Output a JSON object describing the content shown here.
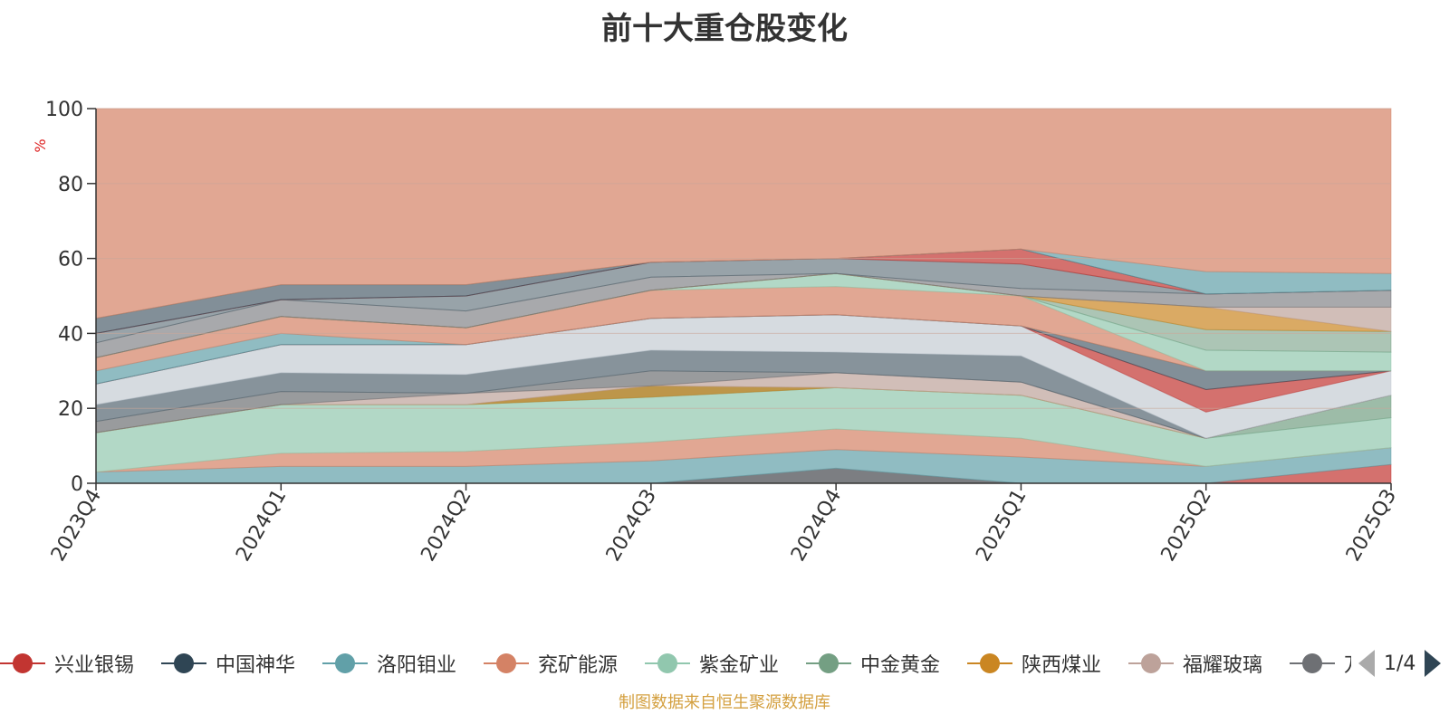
{
  "title": "前十大重仓股变化",
  "source_note": "制图数据来自恒生聚源数据库",
  "legend_pager": {
    "text": "1/4"
  },
  "legend": [
    {
      "name": "兴业银锡",
      "color": "#c23531"
    },
    {
      "name": "中国神华",
      "color": "#2f4554"
    },
    {
      "name": "洛阳钼业",
      "color": "#61a0a8"
    },
    {
      "name": "兖矿能源",
      "color": "#d48265"
    },
    {
      "name": "紫金矿业",
      "color": "#91c7ae"
    },
    {
      "name": "中金黄金",
      "color": "#749f83"
    },
    {
      "name": "陕西煤业",
      "color": "#ca8622"
    },
    {
      "name": "福耀玻璃",
      "color": "#bda29a"
    },
    {
      "name": "万华化学",
      "color": "#6e7074"
    }
  ],
  "chart_data": {
    "type": "area",
    "title": "前十大重仓股变化",
    "ylabel": "%",
    "xlabel": "",
    "ylim": [
      0,
      100
    ],
    "yticks": [
      0,
      20,
      40,
      60,
      80,
      100
    ],
    "grid": true,
    "categories": [
      "2023Q4",
      "2024Q1",
      "2024Q2",
      "2024Q3",
      "2024Q4",
      "2025Q1",
      "2025Q2",
      "2025Q3"
    ],
    "bands": [
      {
        "lower": [
          0,
          0,
          0,
          0,
          0,
          0,
          0,
          0
        ],
        "upper": [
          0,
          0,
          0,
          0,
          4,
          0,
          0,
          0
        ],
        "color": "#6e7074",
        "opacity": 0.9
      },
      {
        "lower": [
          0,
          0,
          0,
          0,
          0,
          0,
          0,
          0
        ],
        "upper": [
          0,
          0,
          0,
          0,
          0,
          0,
          0,
          5
        ],
        "color": "#c23531",
        "opacity": 0.7
      },
      {
        "lower": [
          0,
          0,
          0,
          0,
          4,
          0,
          0,
          5
        ],
        "upper": [
          3,
          4.5,
          4.5,
          6,
          9,
          7,
          4.5,
          9.5
        ],
        "color": "#61a0a8",
        "opacity": 0.7
      },
      {
        "lower": [
          3,
          4.5,
          4.5,
          6,
          9,
          7,
          4.5,
          9.5
        ],
        "upper": [
          3,
          8,
          8.5,
          11,
          14.5,
          12,
          4.5,
          9.5
        ],
        "color": "#d48265",
        "opacity": 0.7
      },
      {
        "lower": [
          3,
          8,
          8.5,
          11,
          14.5,
          12,
          4.5,
          9.5
        ],
        "upper": [
          13.5,
          21,
          21,
          23,
          25.5,
          23.5,
          12,
          17.5
        ],
        "color": "#91c7ae",
        "opacity": 0.7
      },
      {
        "lower": [
          13.5,
          21,
          21,
          23,
          25.5,
          23.5,
          12,
          17.5
        ],
        "upper": [
          13.5,
          21,
          21,
          26,
          25.5,
          23.5,
          12,
          23.5
        ],
        "color": "#749f83",
        "opacity": 0.7
      },
      {
        "lower": [
          13.5,
          21,
          21,
          23,
          25.5,
          23.5,
          12,
          23.5
        ],
        "upper": [
          13.5,
          21,
          21,
          26,
          25.5,
          23.5,
          12,
          23.5
        ],
        "color": "#ca8622",
        "opacity": 0.7
      },
      {
        "lower": [
          13.5,
          21,
          21,
          26,
          25.5,
          23.5,
          12,
          23.5
        ],
        "upper": [
          13.5,
          21,
          24,
          26,
          29.5,
          27,
          12,
          23.5
        ],
        "color": "#bda29a",
        "opacity": 0.7
      },
      {
        "lower": [
          13.5,
          21,
          24,
          26,
          29.5,
          27,
          12,
          23.5
        ],
        "upper": [
          16.5,
          24.5,
          24,
          30,
          29.5,
          27,
          12,
          23.5
        ],
        "color": "#6e7074",
        "opacity": 0.7
      },
      {
        "lower": [
          16.5,
          24.5,
          24,
          30,
          29.5,
          27,
          12,
          23.5
        ],
        "upper": [
          21,
          29.5,
          29,
          35.5,
          35,
          34,
          12,
          23.5
        ],
        "color": "#546570",
        "opacity": 0.7
      },
      {
        "lower": [
          21,
          29.5,
          29,
          35.5,
          35,
          34,
          12,
          23.5
        ],
        "upper": [
          26.5,
          37,
          37,
          44,
          45,
          42,
          19,
          30
        ],
        "color": "#c4ccd3",
        "opacity": 0.7
      },
      {
        "lower": [
          26.5,
          37,
          37,
          44,
          45,
          42,
          19,
          30
        ],
        "upper": [
          26.5,
          37,
          37,
          44,
          45,
          42,
          25,
          30
        ],
        "color": "#c23531",
        "opacity": 0.7
      },
      {
        "lower": [
          26.5,
          37,
          37,
          44,
          45,
          42,
          25,
          30
        ],
        "upper": [
          26.5,
          37,
          37,
          44,
          45,
          42,
          30,
          30
        ],
        "color": "#2f4554",
        "opacity": 0.6
      },
      {
        "lower": [
          26.5,
          37,
          37,
          44,
          45,
          42,
          30,
          30
        ],
        "upper": [
          30,
          40,
          37,
          44,
          45,
          42,
          30,
          30
        ],
        "color": "#61a0a8",
        "opacity": 0.7
      },
      {
        "lower": [
          30,
          40,
          37,
          44,
          45,
          42,
          30,
          30
        ],
        "upper": [
          33.5,
          44.5,
          41.5,
          51.5,
          52.5,
          50,
          30,
          30
        ],
        "color": "#d48265",
        "opacity": 0.7
      },
      {
        "lower": [
          33.5,
          44.5,
          41.5,
          51.5,
          52.5,
          50,
          30,
          30
        ],
        "upper": [
          33.5,
          44.5,
          41.5,
          51.5,
          56,
          50,
          35.5,
          35
        ],
        "color": "#91c7ae",
        "opacity": 0.7
      },
      {
        "lower": [
          33.5,
          44.5,
          41.5,
          51.5,
          56,
          50,
          35.5,
          35
        ],
        "upper": [
          33.5,
          44.5,
          41.5,
          51.5,
          56,
          50,
          41,
          40.5
        ],
        "color": "#749f83",
        "opacity": 0.6
      },
      {
        "lower": [
          33.5,
          44.5,
          41.5,
          51.5,
          56,
          50,
          41,
          40.5
        ],
        "upper": [
          33.5,
          44.5,
          41.5,
          51.5,
          56,
          50,
          47,
          40.5
        ],
        "color": "#ca8622",
        "opacity": 0.7
      },
      {
        "lower": [
          33.5,
          44.5,
          41.5,
          51.5,
          56,
          50,
          47,
          40.5
        ],
        "upper": [
          33.5,
          44.5,
          41.5,
          51.5,
          56,
          50,
          47,
          47
        ],
        "color": "#bda29a",
        "opacity": 0.7
      },
      {
        "lower": [
          33.5,
          44.5,
          41.5,
          51.5,
          56,
          50,
          47,
          47
        ],
        "upper": [
          37.5,
          49,
          46,
          55,
          56,
          52,
          50.5,
          51.5
        ],
        "color": "#6e7074",
        "opacity": 0.6
      },
      {
        "lower": [
          37.5,
          49,
          46,
          55,
          56,
          52,
          50.5,
          51.5
        ],
        "upper": [
          40,
          49,
          50,
          59,
          60,
          58.5,
          50.5,
          51.5
        ],
        "color": "#546570",
        "opacity": 0.6
      },
      {
        "lower": [
          40,
          49,
          50,
          59,
          60,
          58.5,
          50.5,
          51.5
        ],
        "upper": [
          40,
          49,
          50,
          59,
          60,
          62.5,
          50.5,
          51.5
        ],
        "color": "#c23531",
        "opacity": 0.7
      },
      {
        "lower": [
          40,
          49,
          50,
          59,
          60,
          62.5,
          50.5,
          51.5
        ],
        "upper": [
          44,
          53,
          53,
          59,
          60,
          62.5,
          50.5,
          51.5
        ],
        "color": "#2f4554",
        "opacity": 0.6
      },
      {
        "lower": [
          44,
          53,
          53,
          59,
          60,
          62.5,
          50.5,
          51.5
        ],
        "upper": [
          44,
          53,
          53,
          59,
          60,
          62.5,
          56.5,
          56
        ],
        "color": "#61a0a8",
        "opacity": 0.7
      },
      {
        "lower": [
          44,
          53,
          53,
          59,
          60,
          62.5,
          56.5,
          56
        ],
        "upper": [
          100,
          100,
          100,
          100,
          100,
          100,
          100,
          100
        ],
        "color": "#d48265",
        "opacity": 0.7
      }
    ]
  }
}
